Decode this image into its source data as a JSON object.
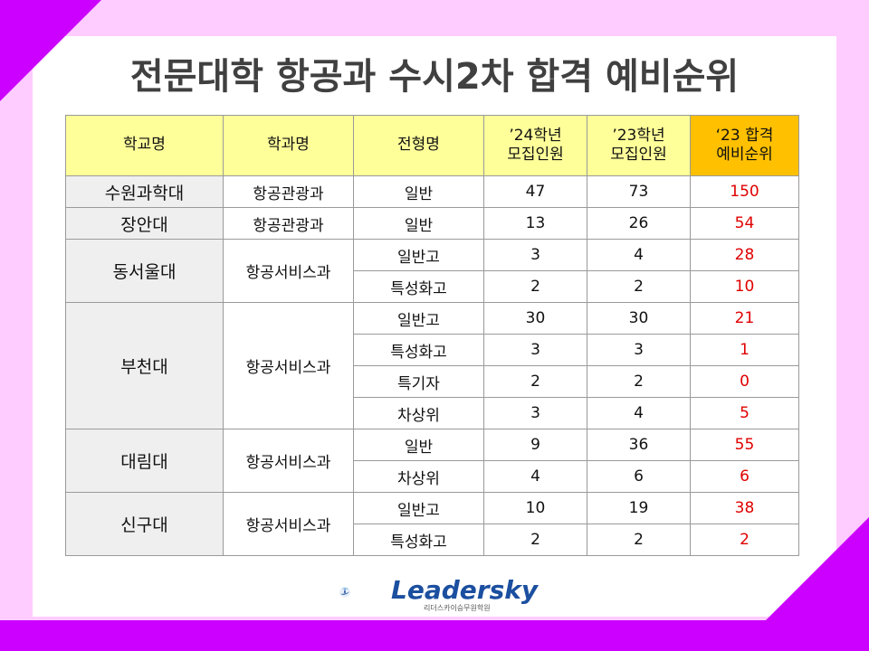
{
  "title": "전문대학 항공과 수시2차 합격 예비순위",
  "headers": {
    "school": "학교명",
    "dept": "학과명",
    "type": "전형명",
    "y24_line1": "’24학년",
    "y24_line2": "모집인원",
    "y23_line1": "’23학년",
    "y23_line2": "모집인원",
    "rank_line1": "‘23 합격",
    "rank_line2": "예비순위"
  },
  "groups": [
    {
      "school": "수원과학대",
      "dept": "항공관광과",
      "rows": [
        {
          "type": "일반",
          "y24": "47",
          "y23": "73",
          "rank": "150"
        }
      ]
    },
    {
      "school": "장안대",
      "dept": "항공관광과",
      "rows": [
        {
          "type": "일반",
          "y24": "13",
          "y23": "26",
          "rank": "54"
        }
      ]
    },
    {
      "school": "동서울대",
      "dept": "항공서비스과",
      "rows": [
        {
          "type": "일반고",
          "y24": "3",
          "y23": "4",
          "rank": "28"
        },
        {
          "type": "특성화고",
          "y24": "2",
          "y23": "2",
          "rank": "10"
        }
      ]
    },
    {
      "school": "부천대",
      "dept": "항공서비스과",
      "rows": [
        {
          "type": "일반고",
          "y24": "30",
          "y23": "30",
          "rank": "21"
        },
        {
          "type": "특성화고",
          "y24": "3",
          "y23": "3",
          "rank": "1"
        },
        {
          "type": "특기자",
          "y24": "2",
          "y23": "2",
          "rank": "0"
        },
        {
          "type": "차상위",
          "y24": "3",
          "y23": "4",
          "rank": "5"
        }
      ]
    },
    {
      "school": "대림대",
      "dept": "항공서비스과",
      "rows": [
        {
          "type": "일반",
          "y24": "9",
          "y23": "36",
          "rank": "55"
        },
        {
          "type": "차상위",
          "y24": "4",
          "y23": "6",
          "rank": "6"
        }
      ]
    },
    {
      "school": "신구대",
      "dept": "항공서비스과",
      "rows": [
        {
          "type": "일반고",
          "y24": "10",
          "y23": "19",
          "rank": "38"
        },
        {
          "type": "특성화고",
          "y24": "2",
          "y23": "2",
          "rank": "2"
        }
      ]
    }
  ],
  "logo": {
    "name": "Leadersky",
    "subtitle": "리더스카이승무원학원",
    "icon": "leadersky-swoosh-icon"
  },
  "colors": {
    "frame_pink": "#ffccff",
    "frame_purple": "#cc00ff",
    "header_yellow": "#ffff9a",
    "header_highlight": "#ffc000",
    "rank_red": "#e00000",
    "school_gray": "#efefef"
  }
}
